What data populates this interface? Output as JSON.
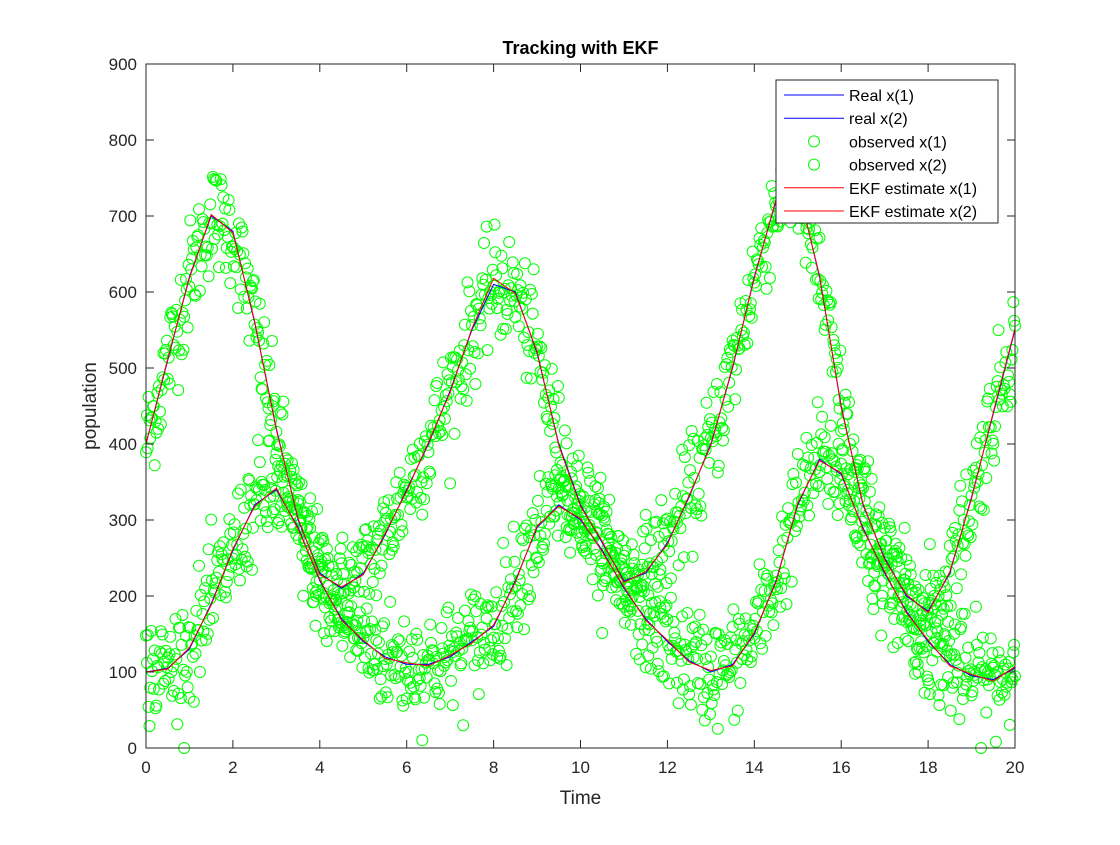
{
  "chart_data": {
    "type": "line",
    "title": "Tracking with EKF",
    "xlabel": "Time",
    "ylabel": "population",
    "xlim": [
      0,
      20
    ],
    "ylim": [
      0,
      900
    ],
    "xticks": [
      0,
      2,
      4,
      6,
      8,
      10,
      12,
      14,
      16,
      18,
      20
    ],
    "yticks": [
      0,
      100,
      200,
      300,
      400,
      500,
      600,
      700,
      800,
      900
    ],
    "grid": false,
    "legend_position": "top-right",
    "legend": [
      {
        "label": "Real x(1)",
        "kind": "line",
        "color": "#0000ff"
      },
      {
        "label": "real x(2)",
        "kind": "line",
        "color": "#0000ff"
      },
      {
        "label": "observed x(1)",
        "kind": "marker",
        "color": "#00ff00"
      },
      {
        "label": "observed x(2)",
        "kind": "marker",
        "color": "#00ff00"
      },
      {
        "label": "EKF estimate x(1)",
        "kind": "line",
        "color": "#ff0000"
      },
      {
        "label": "EKF estimate x(2)",
        "kind": "line",
        "color": "#ff0000"
      }
    ],
    "observation_noise_std": 35,
    "series": [
      {
        "name": "Real x(1)",
        "kind": "line",
        "color": "#0000ff",
        "x": [
          0,
          0.5,
          1,
          1.5,
          2,
          2.5,
          3,
          3.5,
          4,
          4.5,
          5,
          5.5,
          6,
          6.5,
          7,
          7.5,
          8,
          8.5,
          9,
          9.5,
          10,
          10.5,
          11,
          11.5,
          12,
          12.5,
          13,
          13.5,
          14,
          14.5,
          15,
          15.5,
          16,
          16.5,
          17,
          17.5,
          18,
          18.5,
          19,
          19.5,
          20
        ],
        "y": [
          400,
          510,
          620,
          700,
          680,
          560,
          420,
          300,
          230,
          210,
          230,
          280,
          340,
          400,
          470,
          550,
          610,
          600,
          520,
          400,
          320,
          270,
          220,
          230,
          270,
          330,
          400,
          500,
          620,
          720,
          740,
          620,
          450,
          320,
          250,
          200,
          180,
          230,
          330,
          440,
          550
        ]
      },
      {
        "name": "real x(2)",
        "kind": "line",
        "color": "#0000ff",
        "x": [
          0,
          0.5,
          1,
          1.5,
          2,
          2.5,
          3,
          3.5,
          4,
          4.5,
          5,
          5.5,
          6,
          6.5,
          7,
          7.5,
          8,
          8.5,
          9,
          9.5,
          10,
          10.5,
          11,
          11.5,
          12,
          12.5,
          13,
          13.5,
          14,
          14.5,
          15,
          15.5,
          16,
          16.5,
          17,
          17.5,
          18,
          18.5,
          19,
          19.5,
          20
        ],
        "y": [
          100,
          105,
          130,
          190,
          260,
          320,
          340,
          290,
          220,
          170,
          140,
          120,
          110,
          110,
          120,
          140,
          160,
          220,
          290,
          320,
          300,
          260,
          210,
          170,
          140,
          115,
          100,
          110,
          150,
          220,
          320,
          380,
          360,
          290,
          230,
          180,
          140,
          110,
          95,
          90,
          105
        ]
      },
      {
        "name": "EKF estimate x(1)",
        "kind": "line",
        "color": "#ff0000",
        "x": [
          0,
          0.5,
          1,
          1.5,
          2,
          2.5,
          3,
          3.5,
          4,
          4.5,
          5,
          5.5,
          6,
          6.5,
          7,
          7.5,
          8,
          8.5,
          9,
          9.5,
          10,
          10.5,
          11,
          11.5,
          12,
          12.5,
          13,
          13.5,
          14,
          14.5,
          15,
          15.5,
          16,
          16.5,
          17,
          17.5,
          18,
          18.5,
          19,
          19.5,
          20
        ],
        "y": [
          400,
          512,
          618,
          702,
          678,
          562,
          418,
          302,
          228,
          212,
          228,
          282,
          338,
          402,
          468,
          552,
          618,
          598,
          522,
          398,
          318,
          272,
          218,
          232,
          268,
          332,
          398,
          502,
          618,
          722,
          738,
          622,
          448,
          322,
          248,
          202,
          178,
          232,
          328,
          442,
          552
        ]
      },
      {
        "name": "EKF estimate x(2)",
        "kind": "line",
        "color": "#ff0000",
        "x": [
          0,
          0.5,
          1,
          1.5,
          2,
          2.5,
          3,
          3.5,
          4,
          4.5,
          5,
          5.5,
          6,
          6.5,
          7,
          7.5,
          8,
          8.5,
          9,
          9.5,
          10,
          10.5,
          11,
          11.5,
          12,
          12.5,
          13,
          13.5,
          14,
          14.5,
          15,
          15.5,
          16,
          16.5,
          17,
          17.5,
          18,
          18.5,
          19,
          19.5,
          20
        ],
        "y": [
          100,
          104,
          132,
          188,
          262,
          318,
          342,
          288,
          222,
          168,
          142,
          118,
          112,
          108,
          122,
          138,
          162,
          218,
          292,
          318,
          302,
          258,
          212,
          168,
          142,
          113,
          102,
          108,
          152,
          218,
          322,
          378,
          362,
          288,
          232,
          178,
          142,
          108,
          97,
          88,
          107
        ]
      }
    ]
  }
}
